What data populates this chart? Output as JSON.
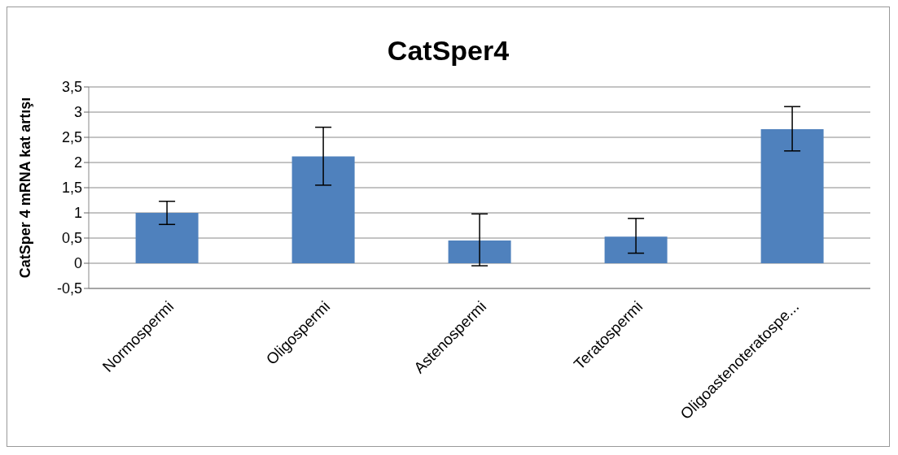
{
  "chart_data": {
    "type": "bar",
    "title": "CatSper4",
    "ylabel": "CatSper 4 mRNA kat artışı",
    "categories": [
      "Normospermi",
      "Oligospermi",
      "Astenospermi",
      "Teratospermi",
      "Oligoastenoteratospe..."
    ],
    "series": [
      {
        "color": "#4f81bd",
        "values": [
          1.0,
          2.12,
          0.45,
          0.53,
          2.66
        ],
        "errors": [
          [
            0.77,
            1.23
          ],
          [
            1.55,
            2.7
          ],
          [
            -0.05,
            0.98
          ],
          [
            0.2,
            0.89
          ],
          [
            2.23,
            3.11
          ]
        ]
      }
    ],
    "ylim": [
      -0.5,
      3.5
    ],
    "yticks": [
      {
        "value": -0.5,
        "label": "-0,5"
      },
      0,
      {
        "value": 0.5,
        "label": "0,5"
      },
      1,
      {
        "value": 1.5,
        "label": "1,5"
      },
      2,
      {
        "value": 2.5,
        "label": "2,5"
      },
      3,
      {
        "value": 3.5,
        "label": "3,5"
      }
    ],
    "grid": "y",
    "legend": false
  }
}
